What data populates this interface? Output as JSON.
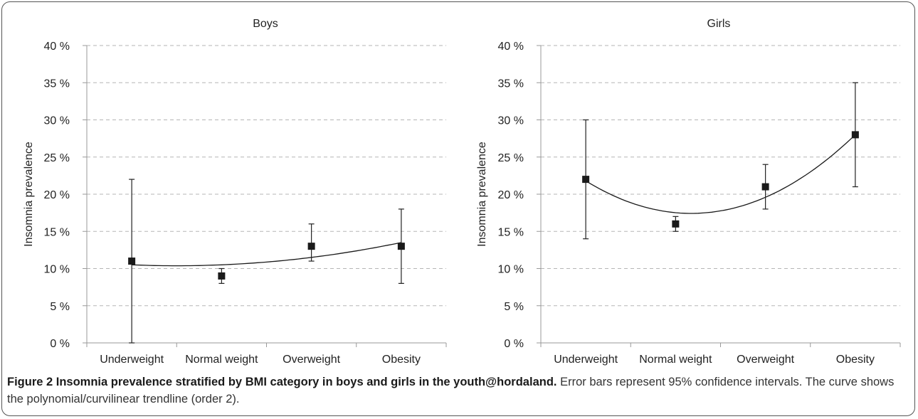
{
  "chart_data": [
    {
      "type": "scatter",
      "title": "Boys",
      "xlabel": "",
      "ylabel": "Insomnia prevalence",
      "categories": [
        "Underweight",
        "Normal weight",
        "Overweight",
        "Obesity"
      ],
      "yticks": [
        "0 %",
        "5 %",
        "10 %",
        "15 %",
        "20 %",
        "25 %",
        "30 %",
        "35 %",
        "40 %"
      ],
      "ylim": [
        0,
        40
      ],
      "grid": true,
      "series": [
        {
          "values": [
            11,
            9,
            13,
            13
          ],
          "ci_lower": [
            0,
            8,
            11,
            8
          ],
          "ci_upper": [
            22,
            10,
            16,
            18
          ]
        }
      ],
      "trendline": {
        "type": "polynomial",
        "order": 2,
        "values": [
          10.5,
          10.5,
          11.5,
          13.5
        ]
      }
    },
    {
      "type": "scatter",
      "title": "Girls",
      "xlabel": "",
      "ylabel": "Insomnia prevalence",
      "categories": [
        "Underweight",
        "Normal weight",
        "Overweight",
        "Obesity"
      ],
      "yticks": [
        "0 %",
        "5 %",
        "10 %",
        "15 %",
        "20 %",
        "25 %",
        "30 %",
        "35 %",
        "40 %"
      ],
      "ylim": [
        0,
        40
      ],
      "grid": true,
      "series": [
        {
          "values": [
            22,
            16,
            21,
            28
          ],
          "ci_lower": [
            14,
            15,
            18,
            21
          ],
          "ci_upper": [
            30,
            17,
            24,
            35
          ]
        }
      ],
      "trendline": {
        "type": "polynomial",
        "order": 2,
        "values": [
          21.8,
          17.5,
          19.6,
          28.0
        ]
      }
    }
  ],
  "caption": {
    "bold": "Figure 2 Insomnia prevalence stratified by BMI category in boys and girls in the youth@hordaland.",
    "text": " Error bars represent 95% confidence intervals. The curve shows the polynomial/curvilinear trendline (order 2)."
  },
  "colors": {
    "marker": "#1a1a1a",
    "grid": "#b5b5b5",
    "axis": "#999999",
    "trend": "#1a1a1a"
  }
}
